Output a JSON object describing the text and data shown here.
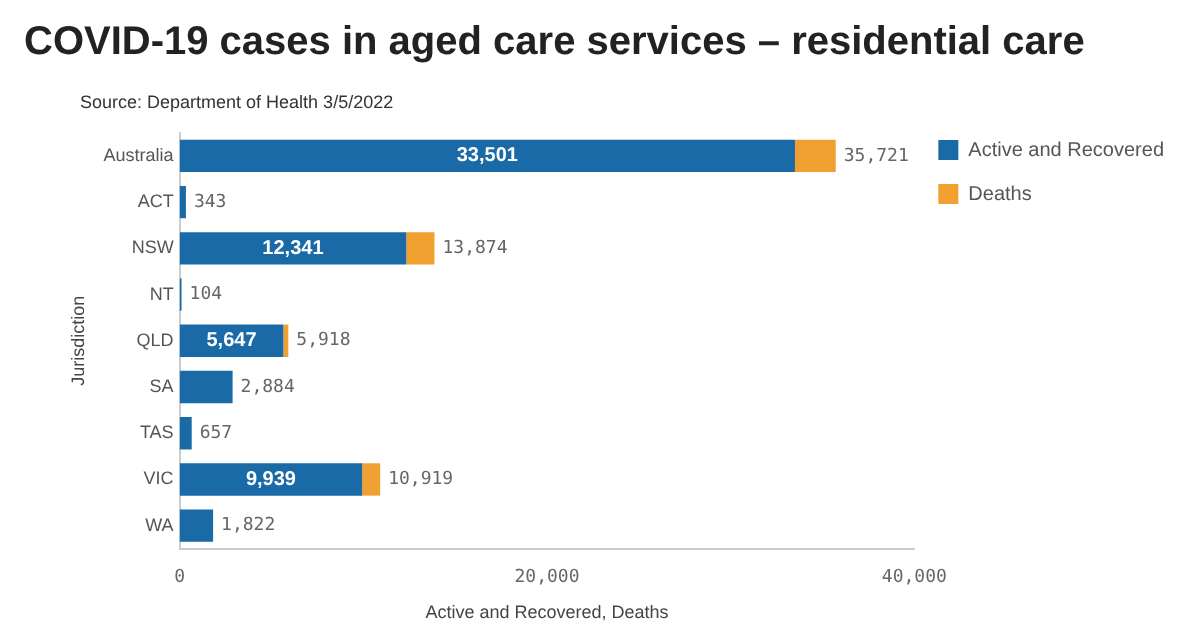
{
  "chart_data": {
    "type": "bar",
    "orientation": "horizontal",
    "stacked": true,
    "title": "COVID-19 cases in aged care services – residential care",
    "annotations": [
      "Source: Department of Health 3/5/2022"
    ],
    "ylabel": "Jurisdiction",
    "xlabel": "Active and Recovered, Deaths",
    "categories": [
      "Australia",
      "ACT",
      "NSW",
      "NT",
      "QLD",
      "SA",
      "TAS",
      "VIC",
      "WA"
    ],
    "series": [
      {
        "name": "Active and Recovered",
        "color": "#1a6aa8",
        "values": [
          33501,
          343,
          12341,
          104,
          5647,
          2884,
          657,
          9939,
          1822
        ],
        "value_labels": [
          "33,501",
          null,
          "12,341",
          null,
          "5,647",
          null,
          null,
          "9,939",
          null
        ]
      },
      {
        "name": "Deaths",
        "color": "#f0a030",
        "values": [
          2220,
          null,
          1533,
          null,
          271,
          null,
          null,
          980,
          null
        ]
      }
    ],
    "totals": [
      "35,721",
      "343",
      "13,874",
      "104",
      "5,918",
      "2,884",
      "657",
      "10,919",
      "1,822"
    ],
    "xlim": [
      0,
      40000
    ],
    "xticks": [
      0,
      {
        "value": 20000,
        "label": "20,000"
      },
      {
        "value": 40000,
        "label": "40,000"
      }
    ],
    "grid": false,
    "legend": "right"
  }
}
